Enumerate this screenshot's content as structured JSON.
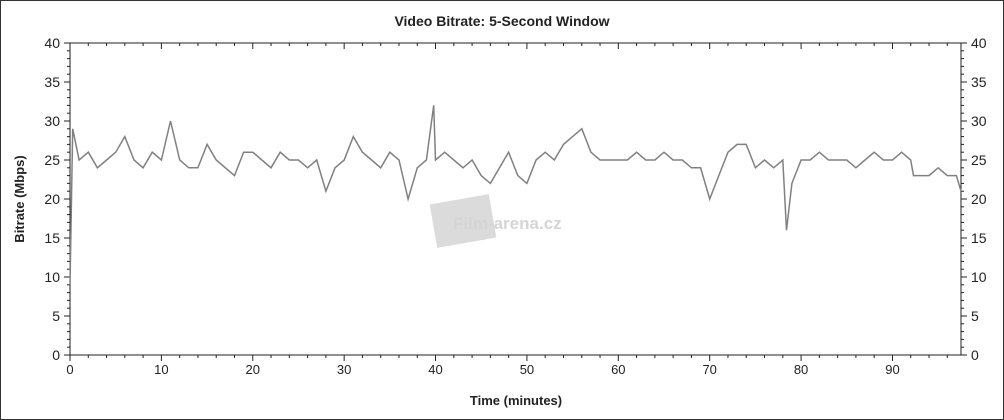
{
  "chart_data": {
    "type": "line",
    "title": "Video Bitrate: 5-Second Window",
    "xlabel": "Time (minutes)",
    "ylabel": "Bitrate (Mbps)",
    "xlim": [
      0,
      97.5
    ],
    "ylim": [
      0,
      40
    ],
    "x_ticks": [
      0,
      10,
      20,
      30,
      40,
      50,
      60,
      70,
      80,
      90
    ],
    "y_ticks": [
      0,
      5,
      10,
      15,
      20,
      25,
      30,
      35,
      40
    ],
    "right_axis_mirrored": true,
    "grid": false,
    "line_color": "#808080",
    "watermark": "Film-arena.cz",
    "series": [
      {
        "points": [
          [
            0,
            9
          ],
          [
            0.3,
            29
          ],
          [
            1,
            25
          ],
          [
            2,
            26
          ],
          [
            3,
            24
          ],
          [
            4,
            25
          ],
          [
            5,
            26
          ],
          [
            6,
            28
          ],
          [
            7,
            25
          ],
          [
            8,
            24
          ],
          [
            9,
            26
          ],
          [
            10,
            25
          ],
          [
            11,
            30
          ],
          [
            12,
            25
          ],
          [
            13,
            24
          ],
          [
            14,
            24
          ],
          [
            15,
            27
          ],
          [
            16,
            25
          ],
          [
            17,
            24
          ],
          [
            18,
            23
          ],
          [
            19,
            26
          ],
          [
            20,
            26
          ],
          [
            21,
            25
          ],
          [
            22,
            24
          ],
          [
            23,
            26
          ],
          [
            24,
            25
          ],
          [
            25,
            25
          ],
          [
            26,
            24
          ],
          [
            27,
            25
          ],
          [
            28,
            21
          ],
          [
            29,
            24
          ],
          [
            30,
            25
          ],
          [
            31,
            28
          ],
          [
            32,
            26
          ],
          [
            33,
            25
          ],
          [
            34,
            24
          ],
          [
            35,
            26
          ],
          [
            36,
            25
          ],
          [
            37,
            20
          ],
          [
            38,
            24
          ],
          [
            39,
            25
          ],
          [
            39.8,
            32
          ],
          [
            40,
            25
          ],
          [
            41,
            26
          ],
          [
            42,
            25
          ],
          [
            43,
            24
          ],
          [
            44,
            25
          ],
          [
            45,
            23
          ],
          [
            46,
            22
          ],
          [
            47,
            24
          ],
          [
            48,
            26
          ],
          [
            49,
            23
          ],
          [
            50,
            22
          ],
          [
            51,
            25
          ],
          [
            52,
            26
          ],
          [
            53,
            25
          ],
          [
            54,
            27
          ],
          [
            55,
            28
          ],
          [
            56,
            29
          ],
          [
            57,
            26
          ],
          [
            58,
            25
          ],
          [
            59,
            25
          ],
          [
            60,
            25
          ],
          [
            61,
            25
          ],
          [
            62,
            26
          ],
          [
            63,
            25
          ],
          [
            64,
            25
          ],
          [
            65,
            26
          ],
          [
            66,
            25
          ],
          [
            67,
            25
          ],
          [
            68,
            24
          ],
          [
            69,
            24
          ],
          [
            70,
            20
          ],
          [
            71,
            23
          ],
          [
            72,
            26
          ],
          [
            73,
            27
          ],
          [
            74,
            27
          ],
          [
            75,
            24
          ],
          [
            76,
            25
          ],
          [
            77,
            24
          ],
          [
            78,
            25
          ],
          [
            78.4,
            16
          ],
          [
            79,
            22
          ],
          [
            80,
            25
          ],
          [
            81,
            25
          ],
          [
            82,
            26
          ],
          [
            83,
            25
          ],
          [
            84,
            25
          ],
          [
            85,
            25
          ],
          [
            86,
            24
          ],
          [
            87,
            25
          ],
          [
            88,
            26
          ],
          [
            89,
            25
          ],
          [
            90,
            25
          ],
          [
            91,
            26
          ],
          [
            92,
            25
          ],
          [
            92.3,
            23
          ],
          [
            93,
            23
          ],
          [
            94,
            23
          ],
          [
            95,
            24
          ],
          [
            96,
            23
          ],
          [
            97,
            23
          ],
          [
            97.5,
            21
          ]
        ]
      }
    ]
  }
}
